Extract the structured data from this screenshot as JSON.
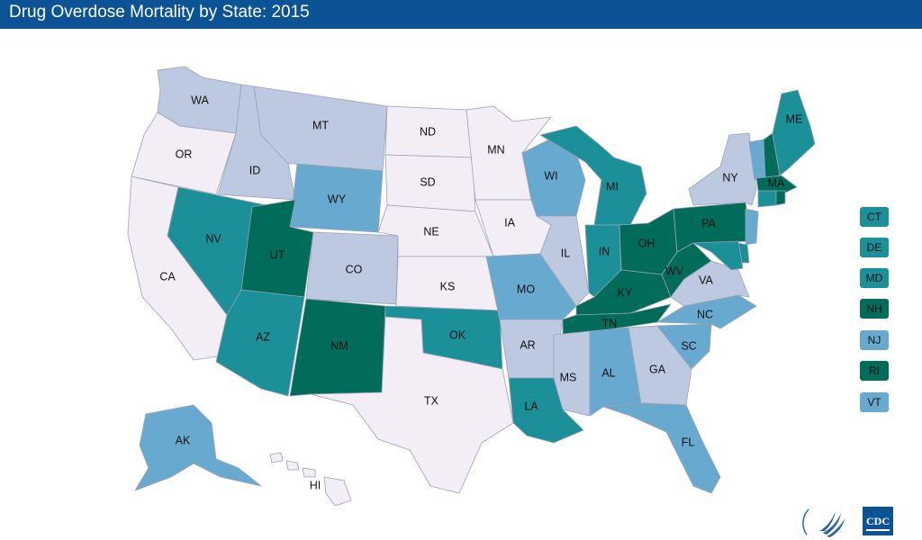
{
  "header": {
    "title": "Drug Overdose Mortality by State: 2015",
    "background": "#0b5394"
  },
  "palette": {
    "c1": "#f3eef6",
    "c2": "#bcc9e1",
    "c3": "#67a9cf",
    "c4": "#1c9099",
    "c5": "#016c59"
  },
  "states": [
    {
      "code": "WA",
      "cls": "c2"
    },
    {
      "code": "OR",
      "cls": "c1"
    },
    {
      "code": "CA",
      "cls": "c1"
    },
    {
      "code": "ID",
      "cls": "c2"
    },
    {
      "code": "MT",
      "cls": "c2"
    },
    {
      "code": "WY",
      "cls": "c3"
    },
    {
      "code": "NV",
      "cls": "c4"
    },
    {
      "code": "UT",
      "cls": "c5"
    },
    {
      "code": "AZ",
      "cls": "c4"
    },
    {
      "code": "CO",
      "cls": "c2"
    },
    {
      "code": "NM",
      "cls": "c5"
    },
    {
      "code": "ND",
      "cls": "c1"
    },
    {
      "code": "SD",
      "cls": "c1"
    },
    {
      "code": "NE",
      "cls": "c1"
    },
    {
      "code": "KS",
      "cls": "c1"
    },
    {
      "code": "OK",
      "cls": "c4"
    },
    {
      "code": "TX",
      "cls": "c1"
    },
    {
      "code": "MN",
      "cls": "c1"
    },
    {
      "code": "IA",
      "cls": "c1"
    },
    {
      "code": "MO",
      "cls": "c3"
    },
    {
      "code": "AR",
      "cls": "c2"
    },
    {
      "code": "LA",
      "cls": "c4"
    },
    {
      "code": "WI",
      "cls": "c3"
    },
    {
      "code": "IL",
      "cls": "c2"
    },
    {
      "code": "MI",
      "cls": "c4"
    },
    {
      "code": "IN",
      "cls": "c4"
    },
    {
      "code": "OH",
      "cls": "c5"
    },
    {
      "code": "KY",
      "cls": "c5"
    },
    {
      "code": "TN",
      "cls": "c5"
    },
    {
      "code": "MS",
      "cls": "c2"
    },
    {
      "code": "AL",
      "cls": "c3"
    },
    {
      "code": "GA",
      "cls": "c2"
    },
    {
      "code": "FL",
      "cls": "c3"
    },
    {
      "code": "SC",
      "cls": "c3"
    },
    {
      "code": "NC",
      "cls": "c3"
    },
    {
      "code": "VA",
      "cls": "c2"
    },
    {
      "code": "WV",
      "cls": "c5"
    },
    {
      "code": "PA",
      "cls": "c5"
    },
    {
      "code": "NY",
      "cls": "c2"
    },
    {
      "code": "ME",
      "cls": "c4"
    },
    {
      "code": "MA",
      "cls": "c5"
    },
    {
      "code": "AK",
      "cls": "c3"
    },
    {
      "code": "HI",
      "cls": "c1"
    }
  ],
  "legend": [
    {
      "code": "CT",
      "cls": "c4"
    },
    {
      "code": "DE",
      "cls": "c4"
    },
    {
      "code": "MD",
      "cls": "c4"
    },
    {
      "code": "NH",
      "cls": "c5"
    },
    {
      "code": "NJ",
      "cls": "c3"
    },
    {
      "code": "RI",
      "cls": "c5"
    },
    {
      "code": "VT",
      "cls": "c3"
    }
  ],
  "logos": {
    "hhs": "hhs-eagle-icon",
    "cdc": "CDC"
  }
}
